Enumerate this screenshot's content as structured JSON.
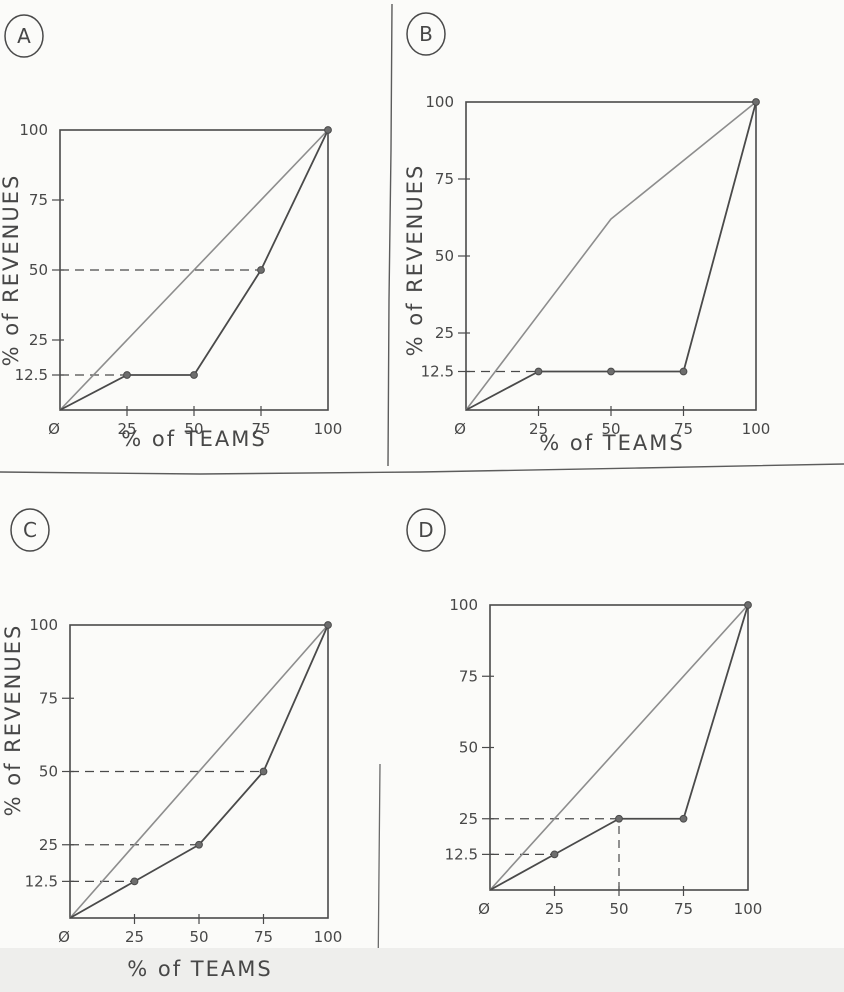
{
  "chart_data": [
    {
      "type": "line",
      "panel_label": "A",
      "xlabel": "% of TEAMS",
      "ylabel": "% of REVENUES",
      "x_ticks": [
        "Ø",
        "25",
        "50",
        "75",
        "100"
      ],
      "y_ticks": [
        "12.5",
        "25",
        "50",
        "75",
        "100"
      ],
      "xlim": [
        0,
        100
      ],
      "ylim": [
        0,
        100
      ],
      "series": [
        {
          "x": [
            0,
            100
          ],
          "y": [
            0,
            100
          ]
        },
        {
          "x": [
            0,
            25,
            50,
            75,
            100
          ],
          "y": [
            0,
            12.5,
            12.5,
            50,
            100
          ]
        }
      ],
      "guides_y": [
        12.5,
        50
      ],
      "guides_x": []
    },
    {
      "type": "line",
      "panel_label": "B",
      "xlabel": "% of TEAMS",
      "ylabel": "% of REVENUES",
      "x_ticks": [
        "Ø",
        "25",
        "50",
        "75",
        "100"
      ],
      "y_ticks": [
        "12.5",
        "25",
        "50",
        "75",
        "100"
      ],
      "xlim": [
        0,
        100
      ],
      "ylim": [
        0,
        100
      ],
      "series": [
        {
          "x": [
            0,
            50,
            100
          ],
          "y": [
            0,
            62,
            100
          ]
        },
        {
          "x": [
            0,
            25,
            50,
            75,
            100
          ],
          "y": [
            0,
            12.5,
            12.5,
            12.5,
            100
          ]
        }
      ],
      "guides_y": [
        12.5
      ],
      "guides_x": []
    },
    {
      "type": "line",
      "panel_label": "C",
      "xlabel": "% of TEAMS",
      "ylabel": "% of REVENUES",
      "x_ticks": [
        "Ø",
        "25",
        "50",
        "75",
        "100"
      ],
      "y_ticks": [
        "12.5",
        "25",
        "50",
        "75",
        "100"
      ],
      "xlim": [
        0,
        100
      ],
      "ylim": [
        0,
        100
      ],
      "series": [
        {
          "x": [
            0,
            100
          ],
          "y": [
            0,
            100
          ]
        },
        {
          "x": [
            0,
            25,
            50,
            75,
            100
          ],
          "y": [
            0,
            12.5,
            25,
            50,
            100
          ]
        }
      ],
      "guides_y": [
        12.5,
        25,
        50
      ],
      "guides_x": []
    },
    {
      "type": "line",
      "panel_label": "D",
      "xlabel": "",
      "ylabel": "",
      "x_ticks": [
        "Ø",
        "25",
        "50",
        "75",
        "100"
      ],
      "y_ticks": [
        "12.5",
        "25",
        "50",
        "75",
        "100"
      ],
      "xlim": [
        0,
        100
      ],
      "ylim": [
        0,
        100
      ],
      "series": [
        {
          "x": [
            0,
            100
          ],
          "y": [
            0,
            100
          ]
        },
        {
          "x": [
            0,
            25,
            50,
            75,
            100
          ],
          "y": [
            0,
            12.5,
            25,
            25,
            100
          ]
        }
      ],
      "guides_y": [
        12.5,
        25
      ],
      "guides_x": [
        50
      ]
    }
  ]
}
